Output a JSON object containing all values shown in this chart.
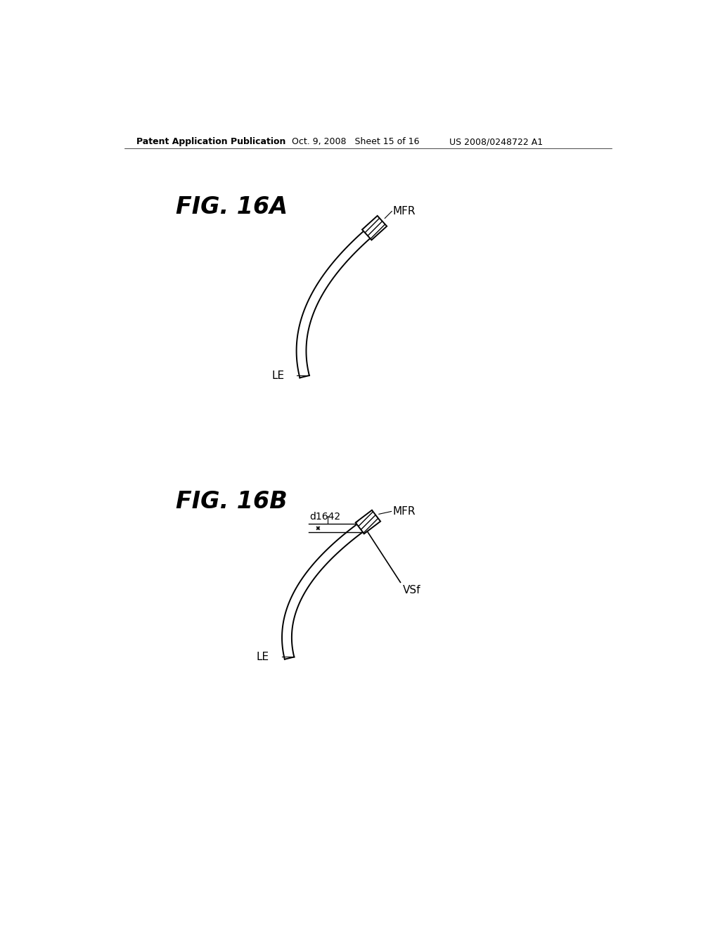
{
  "bg_color": "#ffffff",
  "text_color": "#000000",
  "header_left": "Patent Application Publication",
  "header_mid": "Oct. 9, 2008   Sheet 15 of 16",
  "header_right": "US 2008/0248722 A1",
  "fig16a_label": "FIG. 16A",
  "fig16b_label": "FIG. 16B",
  "line_color": "#000000",
  "line_width": 1.4
}
